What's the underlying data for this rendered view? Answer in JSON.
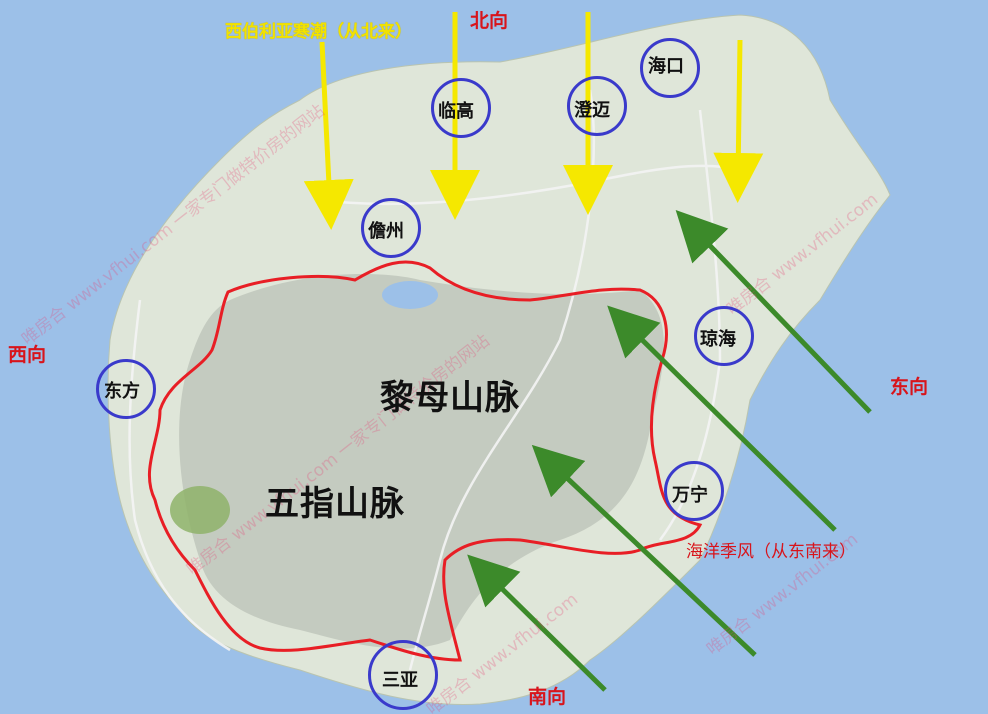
{
  "directions": {
    "north": "北向",
    "south": "南向",
    "west": "西向",
    "east": "东向"
  },
  "winds": {
    "north_label": "西伯利亚寒潮（从北来）",
    "southeast_label": "海洋季风（从东南来）"
  },
  "ranges": {
    "limu": "黎母山脉",
    "wuzhi": "五指山脉"
  },
  "cities": {
    "haikou": "海口",
    "lingao": "临高",
    "chengmai": "澄迈",
    "danzhou": "儋州",
    "qionghai": "琼海",
    "dongfang": "东方",
    "wanning": "万宁",
    "sanya": "三亚"
  },
  "watermark": {
    "text_a": "唯房合 www.vfhui.com 一家专门做特价房的网站",
    "text_b": "唯房合 www.vfhui.com"
  },
  "colors": {
    "sea": "#9cc0e8",
    "land": "#dfe6d9",
    "mountain_outline": "#e81e25",
    "north_arrow": "#f5e800",
    "southeast_arrow": "#3c8a2a",
    "city_circle": "#3a3acb"
  }
}
